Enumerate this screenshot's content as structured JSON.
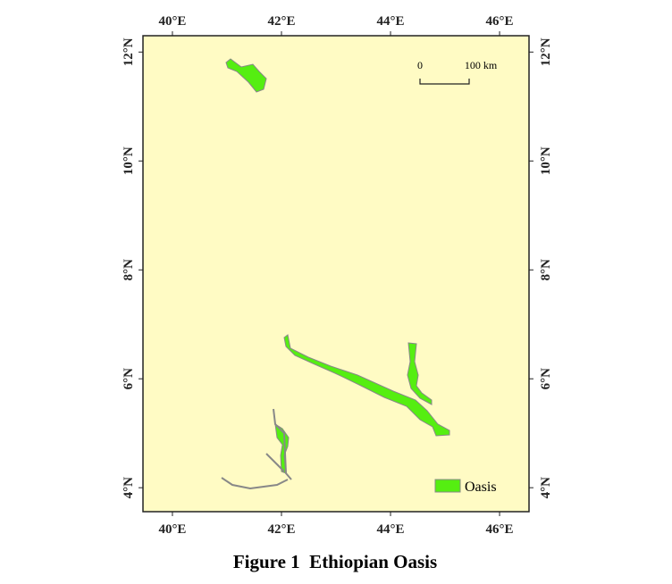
{
  "map": {
    "xlim": [
      39.46,
      46.54
    ],
    "ylim": [
      3.56,
      12.3
    ],
    "xticks": [
      {
        "value": 40,
        "label": "40°E"
      },
      {
        "value": 42,
        "label": "42°E"
      },
      {
        "value": 44,
        "label": "44°E"
      },
      {
        "value": 46,
        "label": "46°E"
      }
    ],
    "yticks": [
      {
        "value": 4,
        "label": "4°N"
      },
      {
        "value": 6,
        "label": "6°N"
      },
      {
        "value": 8,
        "label": "8°N"
      },
      {
        "value": 10,
        "label": "10°N"
      },
      {
        "value": 12,
        "label": "12°N"
      }
    ],
    "scale_bar": {
      "start_label": "0",
      "end_label": "100 km"
    },
    "legend": {
      "label": "Oasis",
      "color": "#55ee11"
    },
    "caption": "Figure 1  Ethiopian Oasis"
  }
}
